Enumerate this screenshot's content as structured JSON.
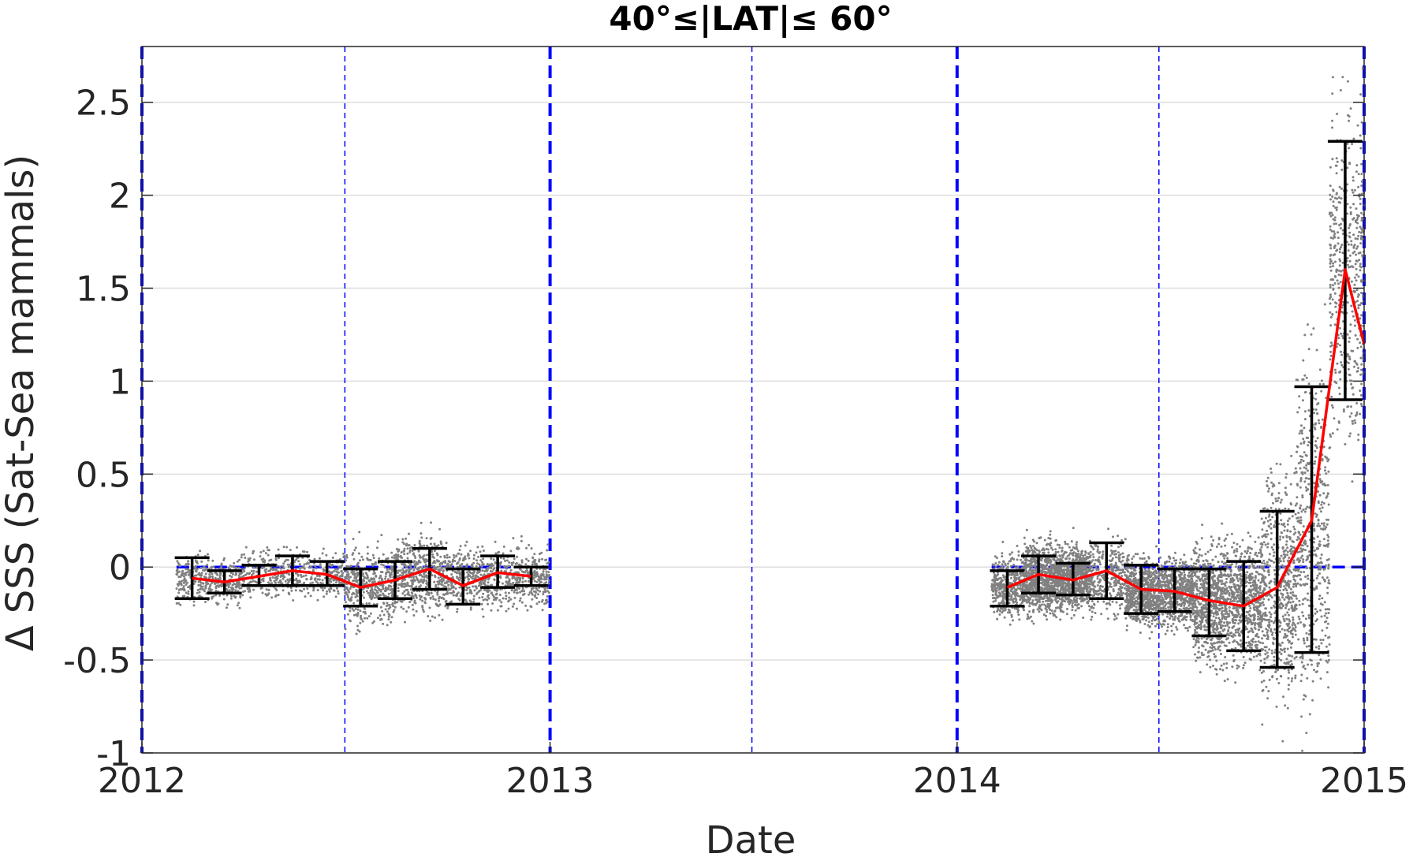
{
  "chart_data": {
    "type": "scatter",
    "title": "40°≤|LAT|≤ 60°",
    "xlabel": "Date",
    "ylabel": "Δ SSS (Sat-Sea mammals)",
    "x_axis": "date",
    "xlim": [
      "2012-01-01",
      "2015-01-01"
    ],
    "ylim": [
      -1,
      2.8
    ],
    "x_ticks": [
      {
        "date": "2012-01-01",
        "label": "2012"
      },
      {
        "date": "2013-01-01",
        "label": "2013"
      },
      {
        "date": "2014-01-01",
        "label": "2014"
      },
      {
        "date": "2015-01-01",
        "label": "2015"
      }
    ],
    "y_ticks": [
      {
        "value": 2.5,
        "label": "2.5"
      },
      {
        "value": 2,
        "label": "2"
      },
      {
        "value": 1.5,
        "label": "1.5"
      },
      {
        "value": 1,
        "label": "1"
      },
      {
        "value": 0.5,
        "label": "0.5"
      },
      {
        "value": 0,
        "label": "0"
      },
      {
        "value": -0.5,
        "label": "-0.5"
      },
      {
        "value": -1,
        "label": "-1"
      }
    ],
    "grid": "horizontal",
    "year_boundary_lines": [
      "2012-01-01",
      "2013-01-01",
      "2014-01-01",
      "2015-01-01"
    ],
    "mid_year_lines": [
      "2012-07-01",
      "2013-07-01",
      "2014-07-01"
    ],
    "zero_line_segments": [
      {
        "start": "2012-02-01",
        "end": "2013-01-01"
      },
      {
        "start": "2014-02-01",
        "end": "2015-01-01"
      }
    ],
    "mean_series": [
      {
        "segment": 1,
        "points": [
          {
            "date": "2012-02-15",
            "mean": -0.06,
            "lower": -0.17,
            "upper": 0.05
          },
          {
            "date": "2012-03-15",
            "mean": -0.08,
            "lower": -0.14,
            "upper": -0.02
          },
          {
            "date": "2012-04-15",
            "mean": -0.05,
            "lower": -0.1,
            "upper": 0.01
          },
          {
            "date": "2012-05-15",
            "mean": -0.02,
            "lower": -0.1,
            "upper": 0.06
          },
          {
            "date": "2012-06-15",
            "mean": -0.04,
            "lower": -0.1,
            "upper": 0.03
          },
          {
            "date": "2012-07-15",
            "mean": -0.11,
            "lower": -0.21,
            "upper": -0.01
          },
          {
            "date": "2012-08-15",
            "mean": -0.07,
            "lower": -0.17,
            "upper": 0.03
          },
          {
            "date": "2012-09-15",
            "mean": -0.01,
            "lower": -0.12,
            "upper": 0.1
          },
          {
            "date": "2012-10-15",
            "mean": -0.1,
            "lower": -0.2,
            "upper": -0.01
          },
          {
            "date": "2012-11-15",
            "mean": -0.03,
            "lower": -0.11,
            "upper": 0.06
          },
          {
            "date": "2012-12-15",
            "mean": -0.05,
            "lower": -0.1,
            "upper": 0.0
          }
        ]
      },
      {
        "segment": 2,
        "points": [
          {
            "date": "2014-02-15",
            "mean": -0.11,
            "lower": -0.21,
            "upper": -0.02
          },
          {
            "date": "2014-03-15",
            "mean": -0.04,
            "lower": -0.14,
            "upper": 0.06
          },
          {
            "date": "2014-04-15",
            "mean": -0.07,
            "lower": -0.15,
            "upper": 0.02
          },
          {
            "date": "2014-05-15",
            "mean": -0.02,
            "lower": -0.17,
            "upper": 0.13
          },
          {
            "date": "2014-06-15",
            "mean": -0.12,
            "lower": -0.25,
            "upper": 0.01
          },
          {
            "date": "2014-07-15",
            "mean": -0.13,
            "lower": -0.24,
            "upper": -0.01
          },
          {
            "date": "2014-08-15",
            "mean": -0.18,
            "lower": -0.37,
            "upper": -0.01
          },
          {
            "date": "2014-09-15",
            "mean": -0.21,
            "lower": -0.45,
            "upper": 0.03
          },
          {
            "date": "2014-10-15",
            "mean": -0.11,
            "lower": -0.54,
            "upper": 0.3
          },
          {
            "date": "2014-11-15",
            "mean": 0.25,
            "lower": -0.46,
            "upper": 0.97
          },
          {
            "date": "2014-12-15",
            "mean": 1.6,
            "lower": 0.9,
            "upper": 2.29
          },
          {
            "date": "2015-01-01",
            "mean": 1.2
          }
        ]
      }
    ],
    "scatter_density": [
      {
        "start": "2012-02-01",
        "end": "2012-04-01",
        "center": -0.07,
        "spread": 0.06,
        "density": 7
      },
      {
        "start": "2012-04-01",
        "end": "2012-07-01",
        "center": -0.04,
        "spread": 0.06,
        "density": 5
      },
      {
        "start": "2012-07-01",
        "end": "2012-08-15",
        "center": -0.1,
        "spread": 0.1,
        "density": 10
      },
      {
        "start": "2012-08-15",
        "end": "2012-10-01",
        "center": -0.04,
        "spread": 0.1,
        "density": 11
      },
      {
        "start": "2012-10-01",
        "end": "2013-01-01",
        "center": -0.06,
        "spread": 0.08,
        "density": 8
      },
      {
        "start": "2014-02-01",
        "end": "2014-03-01",
        "center": -0.1,
        "spread": 0.08,
        "density": 14
      },
      {
        "start": "2014-03-01",
        "end": "2014-05-01",
        "center": -0.06,
        "spread": 0.09,
        "density": 26
      },
      {
        "start": "2014-05-01",
        "end": "2014-06-01",
        "center": -0.06,
        "spread": 0.1,
        "density": 10
      },
      {
        "start": "2014-06-01",
        "end": "2014-08-01",
        "center": -0.13,
        "spread": 0.09,
        "density": 22
      },
      {
        "start": "2014-08-01",
        "end": "2014-10-01",
        "center": -0.19,
        "spread": 0.16,
        "density": 22
      },
      {
        "start": "2014-10-01",
        "end": "2014-11-01",
        "center": -0.1,
        "spread": 0.28,
        "density": 20
      },
      {
        "start": "2014-11-01",
        "end": "2014-12-01",
        "center": 0.2,
        "spread": 0.45,
        "density": 18
      },
      {
        "start": "2014-12-01",
        "end": "2015-01-01",
        "center": 1.55,
        "spread": 0.4,
        "density": 16
      }
    ],
    "colors": {
      "mean_line": "#ff0000",
      "error_bars": "#000000",
      "scatter": "#808080",
      "reference_lines": "#0000ff",
      "grid": "#dddddd",
      "axis": "#262626"
    }
  }
}
